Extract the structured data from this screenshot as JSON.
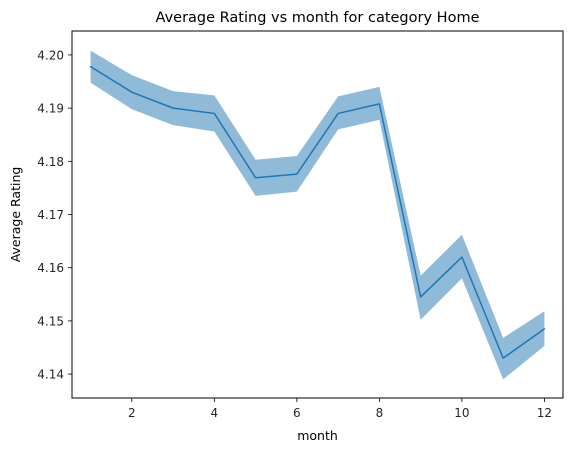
{
  "chart_data": {
    "type": "line",
    "title": "Average Rating vs month for category Home",
    "xlabel": "month",
    "ylabel": "Average Rating",
    "xlim": [
      0.55,
      12.45
    ],
    "ylim": [
      4.1355,
      4.2045
    ],
    "x_ticks": [
      2,
      4,
      6,
      8,
      10,
      12
    ],
    "y_ticks": [
      4.14,
      4.15,
      4.16,
      4.17,
      4.18,
      4.19,
      4.2
    ],
    "y_tick_labels": [
      "4.14",
      "4.15",
      "4.16",
      "4.17",
      "4.18",
      "4.19",
      "4.20"
    ],
    "grid": false,
    "legend": "none",
    "series": [
      {
        "x": [
          1,
          2,
          3,
          4,
          5,
          6,
          7,
          8,
          9,
          10,
          11,
          12
        ],
        "y": [
          4.1978,
          4.193,
          4.19,
          4.189,
          4.1769,
          4.1776,
          4.189,
          4.1908,
          4.1545,
          4.162,
          4.143,
          4.1485
        ],
        "ci_lower": [
          4.1948,
          4.1898,
          4.1868,
          4.1856,
          4.1735,
          4.1743,
          4.186,
          4.1878,
          4.1502,
          4.158,
          4.139,
          4.1453
        ],
        "ci_upper": [
          4.2008,
          4.1962,
          4.1932,
          4.1924,
          4.1803,
          4.181,
          4.1922,
          4.194,
          4.1585,
          4.1662,
          4.1468,
          4.1518
        ],
        "color": "#1f77b4",
        "band_color": "#1f77b4"
      }
    ]
  }
}
